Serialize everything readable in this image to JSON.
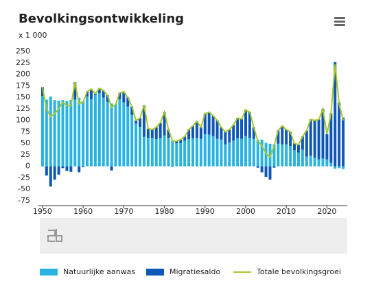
{
  "chart_data": {
    "type": "bar",
    "stacked": true,
    "title": "Bevolkingsontwikkeling",
    "unit_label": "x 1 000",
    "x": [
      1950,
      1951,
      1952,
      1953,
      1954,
      1955,
      1956,
      1957,
      1958,
      1959,
      1960,
      1961,
      1962,
      1963,
      1964,
      1965,
      1966,
      1967,
      1968,
      1969,
      1970,
      1971,
      1972,
      1973,
      1974,
      1975,
      1976,
      1977,
      1978,
      1979,
      1980,
      1981,
      1982,
      1983,
      1984,
      1985,
      1986,
      1987,
      1988,
      1989,
      1990,
      1991,
      1992,
      1993,
      1994,
      1995,
      1996,
      1997,
      1998,
      1999,
      2000,
      2001,
      2002,
      2003,
      2004,
      2005,
      2006,
      2007,
      2008,
      2009,
      2010,
      2011,
      2012,
      2013,
      2014,
      2015,
      2016,
      2017,
      2018,
      2019,
      2020,
      2021,
      2022,
      2023,
      2024
    ],
    "series": [
      {
        "name": "Natuurlijke aanwas",
        "type": "bar",
        "color": "#29b3e0",
        "values": [
          153,
          145,
          152,
          144,
          143,
          144,
          142,
          144,
          145,
          149,
          142,
          152,
          146,
          155,
          159,
          149,
          140,
          137,
          135,
          146,
          139,
          130,
          112,
          93,
          86,
          64,
          62,
          62,
          59,
          62,
          67,
          62,
          56,
          50,
          51,
          56,
          59,
          61,
          62,
          60,
          70,
          69,
          66,
          60,
          58,
          48,
          52,
          56,
          61,
          60,
          66,
          62,
          60,
          58,
          58,
          51,
          49,
          48,
          49,
          48,
          48,
          44,
          35,
          30,
          36,
          21,
          23,
          19,
          15,
          17,
          15,
          8,
          -5,
          -4,
          -6
        ]
      },
      {
        "name": "Migratiesaldo",
        "type": "bar",
        "color": "#0e57b8",
        "values": [
          19,
          -20,
          -44,
          -29,
          -18,
          -4,
          -10,
          -12,
          38,
          -13,
          -2,
          11,
          22,
          3,
          11,
          16,
          15,
          -9,
          0,
          14,
          23,
          20,
          18,
          7,
          19,
          69,
          20,
          18,
          26,
          33,
          51,
          18,
          -1,
          5,
          7,
          9,
          21,
          27,
          36,
          25,
          45,
          49,
          44,
          40,
          27,
          27,
          28,
          34,
          44,
          43,
          57,
          56,
          25,
          -3,
          -13,
          -23,
          -29,
          -3,
          29,
          40,
          32,
          31,
          15,
          17,
          29,
          57,
          79,
          81,
          87,
          108,
          55,
          107,
          227,
          139,
          106
        ]
      },
      {
        "name": "Totale bevolkingsgroei",
        "type": "line",
        "color": "#a8c82a",
        "values": [
          172,
          125,
          108,
          115,
          125,
          140,
          132,
          132,
          183,
          136,
          140,
          163,
          168,
          158,
          170,
          165,
          155,
          128,
          135,
          160,
          162,
          150,
          130,
          100,
          105,
          133,
          82,
          80,
          85,
          95,
          118,
          80,
          55,
          55,
          58,
          65,
          80,
          88,
          98,
          85,
          115,
          118,
          110,
          100,
          85,
          75,
          80,
          90,
          105,
          103,
          123,
          118,
          85,
          55,
          45,
          28,
          20,
          45,
          78,
          88,
          80,
          75,
          50,
          47,
          65,
          78,
          102,
          100,
          102,
          125,
          70,
          115,
          222,
          135,
          100
        ]
      }
    ],
    "xlim": [
      1949,
      2025
    ],
    "xticks": [
      1950,
      1960,
      1970,
      1980,
      1990,
      2000,
      2010,
      2020
    ],
    "ylim": [
      -75,
      250
    ],
    "yticks": [
      -75,
      -50,
      -25,
      0,
      25,
      50,
      75,
      100,
      125,
      150,
      175,
      200,
      225,
      250
    ]
  }
}
